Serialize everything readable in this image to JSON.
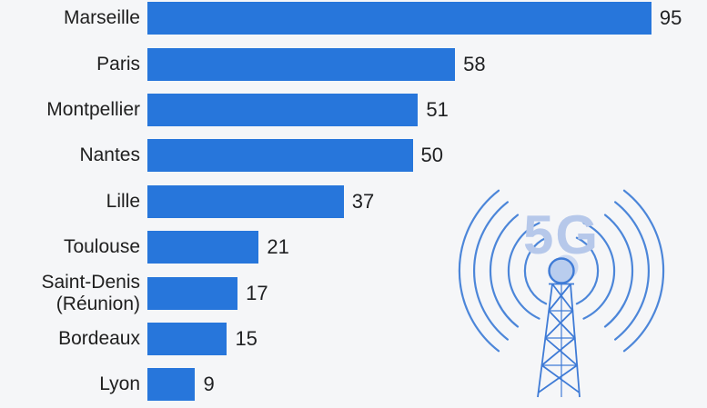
{
  "chart_data": {
    "type": "bar",
    "orientation": "horizontal",
    "title": "",
    "xlabel": "",
    "ylabel": "",
    "xlim": [
      0,
      100
    ],
    "grid": false,
    "value_labels_shown": true,
    "bar_color": "#2776db",
    "background_color": "#f5f6f8",
    "categories": [
      "Marseille",
      "Paris",
      "Montpellier",
      "Nantes",
      "Lille",
      "Toulouse",
      "Saint-Denis (Réunion)",
      "Bordeaux",
      "Lyon"
    ],
    "values": [
      95,
      58,
      51,
      50,
      37,
      21,
      17,
      15,
      9
    ]
  },
  "illustration": {
    "label": "5G",
    "stroke_color": "#4c86d9",
    "fill_color": "#b9cdee",
    "text_color": "#b6c8ea"
  }
}
